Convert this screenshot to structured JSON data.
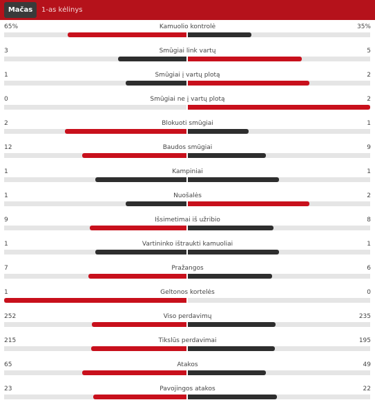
{
  "tabs": {
    "match": "Mačas",
    "half": "1-as kėlinys"
  },
  "colors": {
    "home": "#c8101c",
    "away": "#2e2e2e",
    "track": "#e5e5e5",
    "header": "#b5121b"
  },
  "stats": [
    {
      "name": "Kamuolio kontrolė",
      "left": "65%",
      "right": "35%",
      "lnum": 65,
      "rnum": 35,
      "lcolor": "red",
      "rcolor": "dark"
    },
    {
      "name": "Smūgiai link vartų",
      "left": "3",
      "right": "5",
      "lnum": 3,
      "rnum": 5,
      "lcolor": "dark",
      "rcolor": "red"
    },
    {
      "name": "Smūgiai į vartų plotą",
      "left": "1",
      "right": "2",
      "lnum": 1,
      "rnum": 2,
      "lcolor": "dark",
      "rcolor": "red"
    },
    {
      "name": "Smūgiai ne į vartų plotą",
      "left": "0",
      "right": "2",
      "lnum": 0,
      "rnum": 2,
      "lcolor": "dark",
      "rcolor": "red"
    },
    {
      "name": "Blokuoti smūgiai",
      "left": "2",
      "right": "1",
      "lnum": 2,
      "rnum": 1,
      "lcolor": "red",
      "rcolor": "dark"
    },
    {
      "name": "Baudos smūgiai",
      "left": "12",
      "right": "9",
      "lnum": 12,
      "rnum": 9,
      "lcolor": "red",
      "rcolor": "dark"
    },
    {
      "name": "Kampiniai",
      "left": "1",
      "right": "1",
      "lnum": 1,
      "rnum": 1,
      "lcolor": "dark",
      "rcolor": "dark"
    },
    {
      "name": "Nuošalės",
      "left": "1",
      "right": "2",
      "lnum": 1,
      "rnum": 2,
      "lcolor": "dark",
      "rcolor": "red"
    },
    {
      "name": "Išsimetimai iš užribio",
      "left": "9",
      "right": "8",
      "lnum": 9,
      "rnum": 8,
      "lcolor": "red",
      "rcolor": "dark"
    },
    {
      "name": "Vartininko ištraukti kamuoliai",
      "left": "1",
      "right": "1",
      "lnum": 1,
      "rnum": 1,
      "lcolor": "dark",
      "rcolor": "dark"
    },
    {
      "name": "Pražangos",
      "left": "7",
      "right": "6",
      "lnum": 7,
      "rnum": 6,
      "lcolor": "red",
      "rcolor": "dark"
    },
    {
      "name": "Geltonos kortelės",
      "left": "1",
      "right": "0",
      "lnum": 1,
      "rnum": 0,
      "lcolor": "red",
      "rcolor": "dark"
    },
    {
      "name": "Viso perdavimų",
      "left": "252",
      "right": "235",
      "lnum": 252,
      "rnum": 235,
      "lcolor": "red",
      "rcolor": "dark"
    },
    {
      "name": "Tikslūs perdavimai",
      "left": "215",
      "right": "195",
      "lnum": 215,
      "rnum": 195,
      "lcolor": "red",
      "rcolor": "dark"
    },
    {
      "name": "Atakos",
      "left": "65",
      "right": "49",
      "lnum": 65,
      "rnum": 49,
      "lcolor": "red",
      "rcolor": "dark"
    },
    {
      "name": "Pavojingos atakos",
      "left": "23",
      "right": "22",
      "lnum": 23,
      "rnum": 22,
      "lcolor": "red",
      "rcolor": "dark"
    }
  ]
}
